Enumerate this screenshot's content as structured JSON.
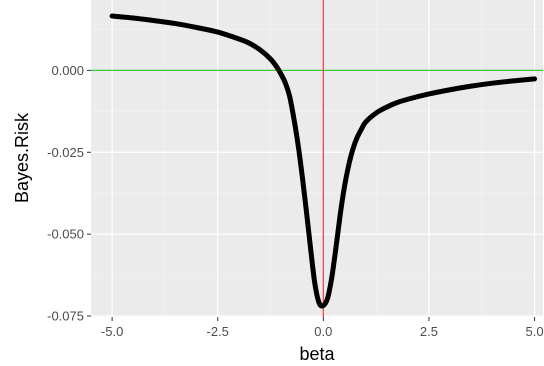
{
  "chart_data": {
    "type": "line",
    "title": "",
    "xlabel": "beta",
    "ylabel": "Bayes.Risk",
    "xlim": [
      -5.5,
      5.2
    ],
    "ylim": [
      -0.0753,
      0.0215
    ],
    "x_ticks": [
      -5.0,
      -2.5,
      0.0,
      2.5,
      5.0
    ],
    "x_tick_labels": [
      "-5.0",
      "-2.5",
      "0.0",
      "2.5",
      "5.0"
    ],
    "y_ticks": [
      0.0,
      -0.025,
      -0.05,
      -0.075
    ],
    "y_tick_labels": [
      "0.000",
      "-0.025",
      "-0.050",
      "-0.075"
    ],
    "grid": true,
    "background": "#ebebeb",
    "hline": {
      "y": 0,
      "color": "#33cc33"
    },
    "vline": {
      "x": 0,
      "color": "#ff3333"
    },
    "series": [
      {
        "color": "#000000",
        "x": [
          -5.0,
          -4.5,
          -4.0,
          -3.5,
          -3.0,
          -2.5,
          -2.0,
          -1.75,
          -1.5,
          -1.25,
          -1.1,
          -1.0,
          -0.9,
          -0.8,
          -0.7,
          -0.6,
          -0.5,
          -0.4,
          -0.3,
          -0.2,
          -0.1,
          0.0,
          0.1,
          0.2,
          0.3,
          0.4,
          0.5,
          0.6,
          0.7,
          0.8,
          0.9,
          1.0,
          1.25,
          1.5,
          1.75,
          2.0,
          2.5,
          3.0,
          3.5,
          4.0,
          4.5,
          5.0
        ],
        "y": [
          0.0166,
          0.016,
          0.0152,
          0.0143,
          0.0131,
          0.0117,
          0.0096,
          0.0083,
          0.0063,
          0.0035,
          0.001,
          -0.0012,
          -0.0038,
          -0.0078,
          -0.0145,
          -0.0225,
          -0.0322,
          -0.0431,
          -0.0546,
          -0.0652,
          -0.071,
          -0.0718,
          -0.0696,
          -0.0632,
          -0.054,
          -0.044,
          -0.0355,
          -0.029,
          -0.024,
          -0.0205,
          -0.018,
          -0.0158,
          -0.013,
          -0.0112,
          -0.0098,
          -0.0088,
          -0.0072,
          -0.0059,
          -0.0048,
          -0.0039,
          -0.0032,
          -0.0026
        ]
      }
    ]
  }
}
